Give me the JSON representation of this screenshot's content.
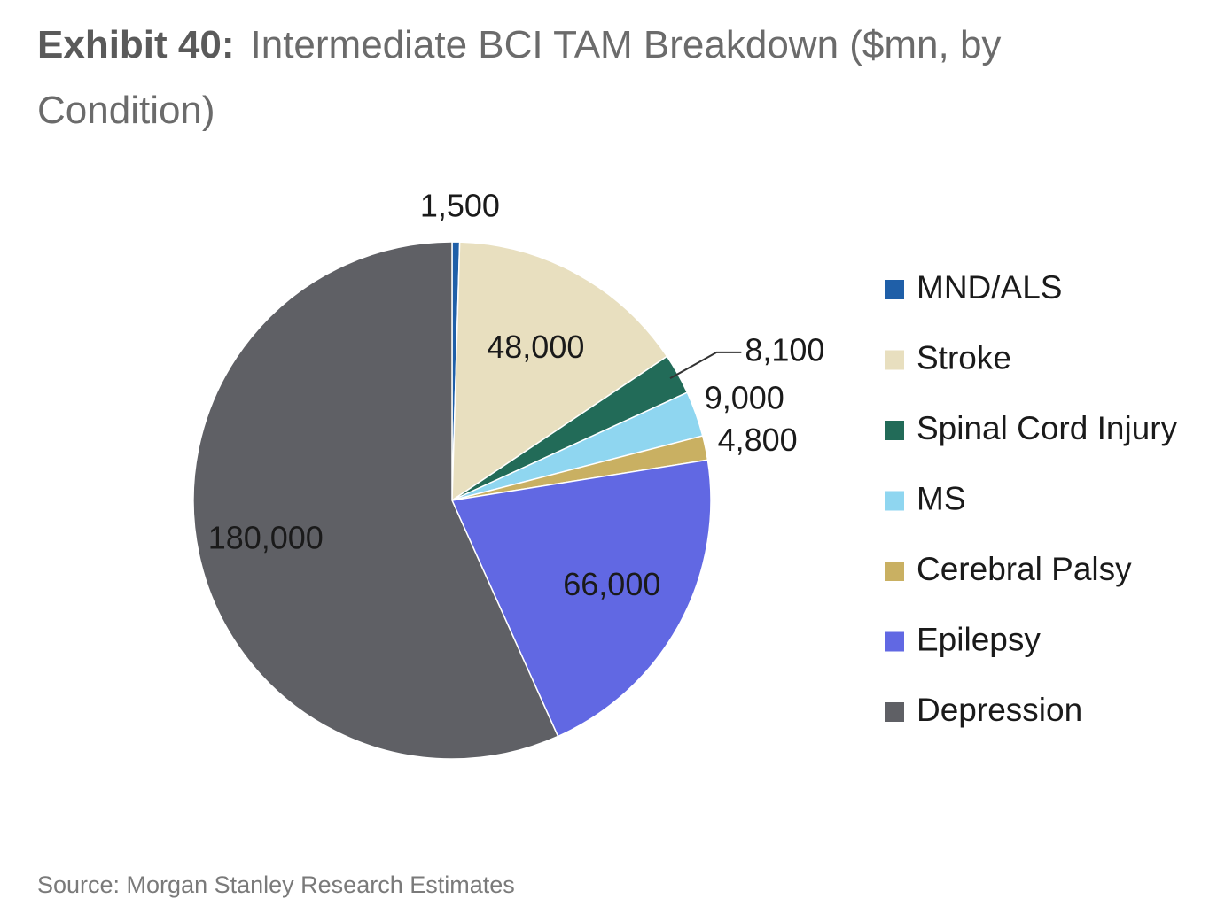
{
  "header": {
    "exhibit": "Exhibit 40:",
    "title": "Intermediate BCI TAM Breakdown ($mn, by Condition)"
  },
  "source": "Source: Morgan Stanley Research Estimates",
  "chart_data": {
    "type": "pie",
    "title": "Intermediate BCI TAM Breakdown ($mn, by Condition)",
    "units": "$mn",
    "legend_position": "right",
    "start": "top, clockwise",
    "slices": [
      {
        "key": "mnd-als",
        "label": "MND/ALS",
        "value": 1500,
        "display": "1,500",
        "color": "#1f5fa8",
        "label_color": "#1a1a1a"
      },
      {
        "key": "stroke",
        "label": "Stroke",
        "value": 48000,
        "display": "48,000",
        "color": "#e8dfbf",
        "label_color": "#1a1a1a"
      },
      {
        "key": "spinal-cord",
        "label": "Spinal Cord Injury",
        "value": 8100,
        "display": "8,100",
        "color": "#226b58",
        "label_color": "#1a1a1a"
      },
      {
        "key": "ms",
        "label": "MS",
        "value": 9000,
        "display": "9,000",
        "color": "#8fd6f0",
        "label_color": "#1a1a1a"
      },
      {
        "key": "cerebral-palsy",
        "label": "Cerebral Palsy",
        "value": 4800,
        "display": "4,800",
        "color": "#c9b062",
        "label_color": "#1a1a1a"
      },
      {
        "key": "epilepsy",
        "label": "Epilepsy",
        "value": 66000,
        "display": "66,000",
        "color": "#6168e3",
        "label_color": "#1a1a1a"
      },
      {
        "key": "depression",
        "label": "Depression",
        "value": 180000,
        "display": "180,000",
        "color": "#5f6065",
        "label_color": "#1a1a1a"
      }
    ]
  }
}
